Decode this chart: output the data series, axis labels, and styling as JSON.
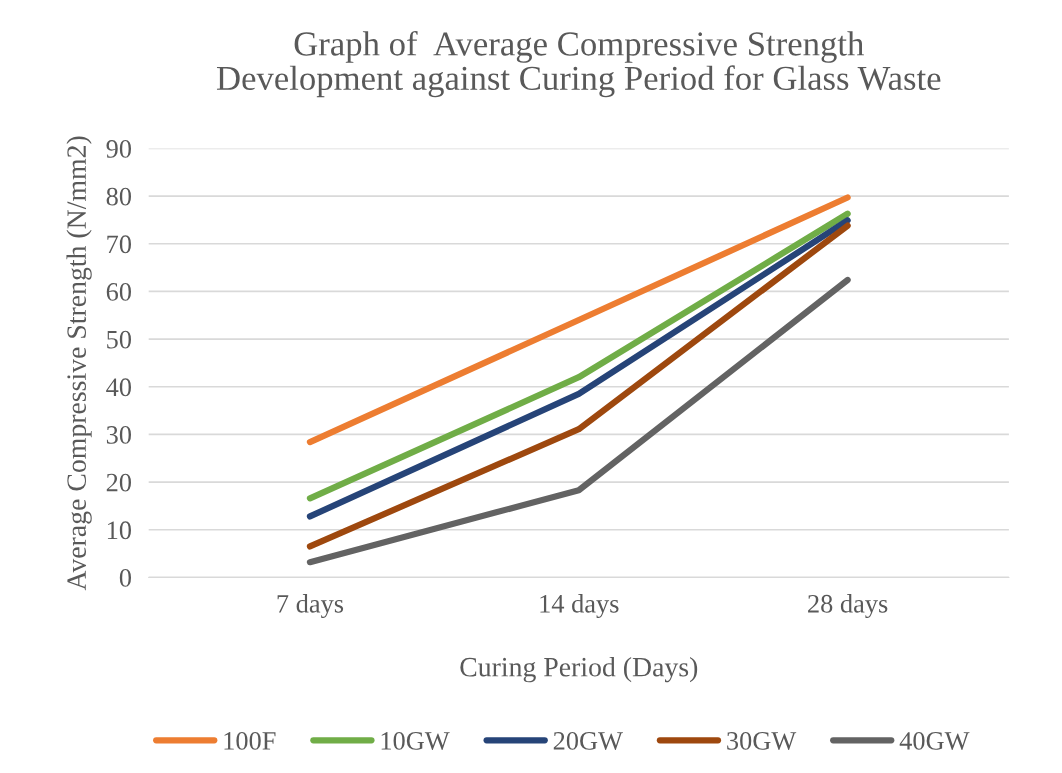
{
  "chart_data": {
    "type": "line",
    "title": "Graph of  Average Compressive Strength\nDevelopment against Curing Period for Glass Waste",
    "xlabel": "Curing Period (Days)",
    "ylabel": "Average Compressive Strength (N/mm2)",
    "categories": [
      "7 days",
      "14 days",
      "28 days"
    ],
    "series": [
      {
        "name": "100F",
        "color": "#ed7d31",
        "values": [
          28.4,
          54,
          79.7
        ]
      },
      {
        "name": "10GW",
        "color": "#70ad47",
        "values": [
          16.6,
          42,
          76.3
        ]
      },
      {
        "name": "20GW",
        "color": "#264478",
        "values": [
          12.8,
          38.5,
          74.9
        ]
      },
      {
        "name": "30GW",
        "color": "#9e480e",
        "values": [
          6.5,
          31.1,
          73.8
        ]
      },
      {
        "name": "40GW",
        "color": "#636363",
        "values": [
          3.2,
          18.3,
          62.4
        ]
      }
    ],
    "ylim": [
      0,
      90
    ],
    "yticks": [
      0,
      10,
      20,
      30,
      40,
      50,
      60,
      70,
      80,
      90
    ],
    "grid": "y",
    "legend": "bottom",
    "marker": "none",
    "line_style": "solid"
  }
}
